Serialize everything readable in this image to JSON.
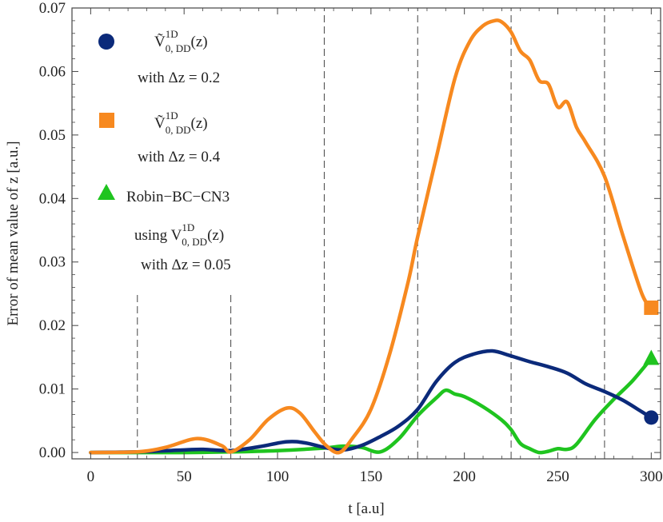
{
  "chart_data": {
    "type": "line",
    "xlabel": "t  [a.u]",
    "ylabel": "Error of  mean  value of  z   [a.u.]",
    "xlim": [
      -10,
      305
    ],
    "ylim": [
      -0.001,
      0.07
    ],
    "xticks": [
      0,
      50,
      100,
      150,
      200,
      250,
      300
    ],
    "xtick_labels": [
      "0",
      "50",
      "100",
      "150",
      "200",
      "250",
      "300"
    ],
    "yticks": [
      0.0,
      0.01,
      0.02,
      0.03,
      0.04,
      0.05,
      0.06,
      0.07
    ],
    "ytick_labels": [
      "0.00",
      "0.01",
      "0.02",
      "0.03",
      "0.04",
      "0.05",
      "0.06",
      "0.07"
    ],
    "grid": false,
    "legend_position": "top-left",
    "vlines": [
      {
        "x": 25,
        "ymax": 0.0253
      },
      {
        "x": 75,
        "ymax": 0.0253
      },
      {
        "x": 125,
        "ymax": 0.07
      },
      {
        "x": 175,
        "ymax": 0.07
      },
      {
        "x": 225,
        "ymax": 0.07
      },
      {
        "x": 275,
        "ymax": 0.07
      }
    ],
    "series": [
      {
        "marker": "circle",
        "color": "#0b2a7a",
        "legend": {
          "main": "Ṽ",
          "sup": "1D",
          "sub": "0, DD",
          "tail": "(z)",
          "line2": "with  Δz = 0.2"
        },
        "x": [
          0,
          25,
          50,
          60,
          75,
          90,
          105,
          115,
          125,
          135,
          145,
          155,
          165,
          175,
          185,
          195,
          205,
          215,
          225,
          235,
          245,
          255,
          265,
          275,
          285,
          295,
          300
        ],
        "y": [
          0.0,
          0.0001,
          0.0004,
          0.0005,
          0.0003,
          0.0009,
          0.0017,
          0.0015,
          0.0008,
          0.0004,
          0.0011,
          0.0025,
          0.0042,
          0.0068,
          0.0112,
          0.0142,
          0.0155,
          0.016,
          0.0152,
          0.0143,
          0.0135,
          0.0125,
          0.0108,
          0.0096,
          0.0082,
          0.0064,
          0.0055
        ]
      },
      {
        "marker": "square",
        "color": "#f7891f",
        "legend": {
          "main": "Ṽ",
          "sup": "1D",
          "sub": "0, DD",
          "tail": "(z)",
          "line2": "with  Δz = 0.4"
        },
        "x": [
          0,
          25,
          40,
          57,
          70,
          75,
          85,
          95,
          105,
          112,
          120,
          126,
          133,
          140,
          150,
          160,
          170,
          175,
          185,
          195,
          203,
          210,
          216,
          220,
          225,
          230,
          235,
          240,
          245,
          250,
          255,
          260,
          265,
          275,
          285,
          295,
          300
        ],
        "y": [
          0.0,
          0.0001,
          0.0008,
          0.0022,
          0.0011,
          0.0001,
          0.002,
          0.0052,
          0.007,
          0.0062,
          0.0032,
          0.0011,
          0.0,
          0.0022,
          0.0068,
          0.0155,
          0.027,
          0.034,
          0.0465,
          0.059,
          0.0648,
          0.0672,
          0.068,
          0.0678,
          0.0662,
          0.0632,
          0.0618,
          0.0586,
          0.058,
          0.0544,
          0.0552,
          0.0512,
          0.0488,
          0.0435,
          0.034,
          0.025,
          0.0228
        ]
      },
      {
        "marker": "triangle",
        "color": "#1fc41f",
        "legend": {
          "main": "Robin−BC−CN3",
          "line2main": "using  V",
          "sup": "1D",
          "sub": "0, DD",
          "tail": "(z)",
          "line3": "with  Δz = 0.05"
        },
        "x": [
          0,
          25,
          50,
          75,
          100,
          125,
          135,
          145,
          155,
          165,
          175,
          185,
          190,
          195,
          200,
          210,
          220,
          225,
          230,
          235,
          240,
          245,
          250,
          255,
          260,
          270,
          280,
          290,
          300
        ],
        "y": [
          0.0,
          0.0,
          0.0,
          0.0001,
          0.0003,
          0.0007,
          0.001,
          0.0008,
          0.0001,
          0.0022,
          0.0058,
          0.0086,
          0.0098,
          0.0092,
          0.0088,
          0.0072,
          0.0051,
          0.0036,
          0.0014,
          0.0006,
          0.0,
          0.0002,
          0.0006,
          0.0005,
          0.0013,
          0.0052,
          0.0084,
          0.0113,
          0.0148
        ]
      }
    ]
  }
}
